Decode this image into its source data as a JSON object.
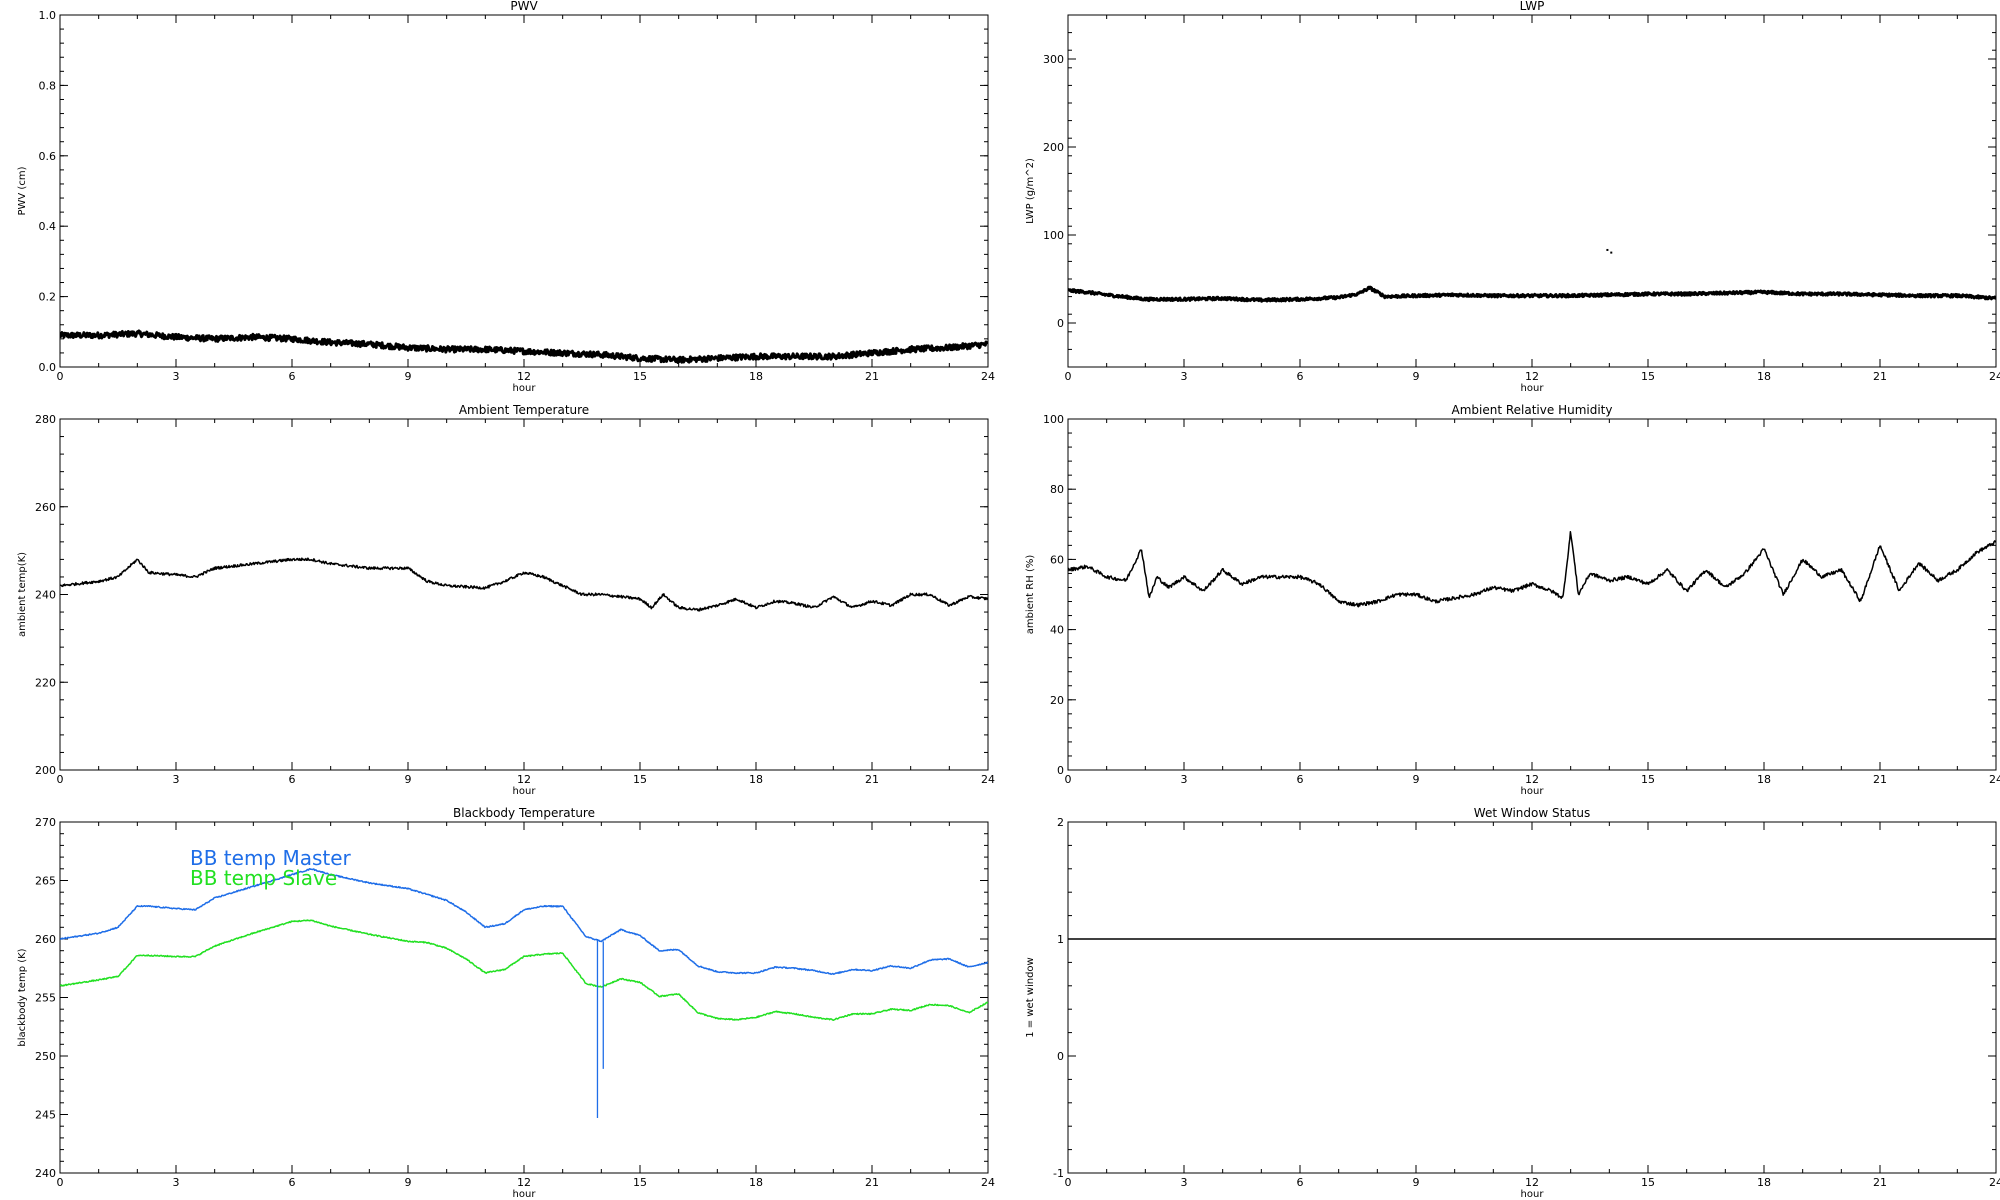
{
  "figure": {
    "panels": [
      "pwv",
      "lwp",
      "ambient_temperature",
      "ambient_relative_humidity",
      "blackbody_temperature",
      "wet_window_status"
    ]
  },
  "chart_data": [
    {
      "id": "pwv",
      "type": "line",
      "title": "PWV",
      "xlabel": "hour",
      "ylabel": "PWV (cm)",
      "xlim": [
        0,
        24
      ],
      "ylim": [
        0,
        1
      ],
      "xticks": [
        0,
        3,
        6,
        9,
        12,
        15,
        18,
        21,
        24
      ],
      "yticks": [
        "0.0",
        "0.2",
        "0.4",
        "0.6",
        "0.8",
        "1.0"
      ],
      "grid": false,
      "noise": 0.008,
      "series": [
        {
          "color": "#000000",
          "width": 3,
          "x": [
            0,
            1,
            2,
            3,
            4,
            5,
            6,
            7,
            8,
            9,
            10,
            11,
            12,
            13,
            14,
            15,
            16,
            17,
            18,
            19,
            20,
            21,
            22,
            23,
            24
          ],
          "y": [
            0.09,
            0.09,
            0.095,
            0.085,
            0.08,
            0.085,
            0.08,
            0.07,
            0.065,
            0.055,
            0.05,
            0.05,
            0.045,
            0.04,
            0.035,
            0.025,
            0.02,
            0.025,
            0.03,
            0.03,
            0.03,
            0.04,
            0.05,
            0.055,
            0.065
          ]
        }
      ]
    },
    {
      "id": "lwp",
      "type": "line",
      "title": "LWP",
      "xlabel": "hour",
      "ylabel": "LWP (g/m^2)",
      "xlim": [
        0,
        24
      ],
      "ylim": [
        -50,
        350
      ],
      "xticks": [
        0,
        3,
        6,
        9,
        12,
        15,
        18,
        21,
        24
      ],
      "yticks": [
        "0",
        "100",
        "200",
        "300"
      ],
      "grid": false,
      "noise": 1.5,
      "series": [
        {
          "color": "#000000",
          "width": 3,
          "x": [
            0,
            0.5,
            1,
            2,
            3,
            4,
            5,
            6,
            7,
            7.5,
            7.8,
            8.2,
            9,
            10,
            11,
            12,
            13,
            14,
            15,
            16,
            17,
            18,
            19,
            20,
            21,
            22,
            23,
            24
          ],
          "y": [
            37,
            35,
            32,
            27,
            27,
            28,
            26,
            27,
            29,
            33,
            40,
            30,
            31,
            32,
            31,
            31,
            31,
            32,
            33,
            33,
            34,
            35,
            33,
            33,
            32,
            31,
            31,
            28
          ]
        },
        {
          "color": "#000000",
          "width": 2,
          "points_only": true,
          "x": [
            13.95,
            14.05
          ],
          "y": [
            83,
            80
          ]
        }
      ]
    },
    {
      "id": "ambient_temperature",
      "type": "line",
      "title": "Ambient Temperature",
      "xlabel": "hour",
      "ylabel": "ambient temp(K)",
      "xlim": [
        0,
        24
      ],
      "ylim": [
        200,
        280
      ],
      "xticks": [
        0,
        3,
        6,
        9,
        12,
        15,
        18,
        21,
        24
      ],
      "yticks": [
        "200",
        "220",
        "240",
        "260",
        "280"
      ],
      "grid": false,
      "noise": 0.3,
      "series": [
        {
          "color": "#000000",
          "width": 1.5,
          "x": [
            0,
            1,
            1.5,
            2,
            2.3,
            3,
            3.5,
            4,
            5,
            6,
            6.5,
            7,
            8,
            9,
            9.5,
            10,
            11,
            11.5,
            12,
            12.5,
            13,
            13.5,
            14,
            14.5,
            15,
            15.3,
            15.6,
            16,
            16.5,
            17,
            17.5,
            18,
            18.5,
            19,
            19.5,
            20,
            20.5,
            21,
            21.5,
            22,
            22.5,
            23,
            23.5,
            24
          ],
          "y": [
            242,
            243,
            244,
            248,
            245,
            244.5,
            244,
            246,
            247,
            248,
            248,
            247,
            246,
            246,
            243,
            242,
            241.5,
            243,
            245,
            244,
            242,
            240,
            240,
            239.5,
            239,
            237,
            240,
            237,
            236.5,
            237.5,
            239,
            237,
            238.5,
            238,
            237,
            239.5,
            237,
            238.5,
            237.5,
            240,
            240,
            237.5,
            239.5,
            239
          ]
        }
      ]
    },
    {
      "id": "ambient_relative_humidity",
      "type": "line",
      "title": "Ambient Relative Humidity",
      "xlabel": "hour",
      "ylabel": "ambient RH (%)",
      "xlim": [
        0,
        24
      ],
      "ylim": [
        0,
        100
      ],
      "xticks": [
        0,
        3,
        6,
        9,
        12,
        15,
        18,
        21,
        24
      ],
      "yticks": [
        "0",
        "20",
        "40",
        "60",
        "80",
        "100"
      ],
      "grid": false,
      "noise": 0.5,
      "series": [
        {
          "color": "#000000",
          "width": 1.5,
          "x": [
            0,
            0.5,
            1,
            1.5,
            1.9,
            2.1,
            2.3,
            2.6,
            3,
            3.5,
            4,
            4.5,
            5,
            5.5,
            6,
            6.5,
            6.8,
            7,
            7.5,
            8,
            8.5,
            9,
            9.5,
            10,
            10.5,
            11,
            11.5,
            12,
            12.5,
            12.8,
            13,
            13.2,
            13.5,
            14,
            14.5,
            15,
            15.5,
            16,
            16.5,
            17,
            17.5,
            18,
            18.5,
            19,
            19.5,
            20,
            20.5,
            21,
            21.5,
            22,
            22.5,
            23,
            23.5,
            24
          ],
          "y": [
            57,
            58,
            55,
            54,
            63,
            49,
            55,
            52,
            55,
            51,
            57,
            53,
            55,
            55,
            55,
            53,
            50,
            48,
            47,
            48,
            50,
            50,
            48,
            49,
            50,
            52,
            51,
            53,
            51,
            49,
            68,
            50,
            56,
            54,
            55,
            53,
            57,
            51,
            57,
            52,
            56,
            63,
            50,
            60,
            55,
            57,
            48,
            64,
            51,
            59,
            54,
            57,
            62,
            65
          ]
        }
      ]
    },
    {
      "id": "blackbody_temperature",
      "type": "line",
      "title": "Blackbody Temperature",
      "xlabel": "hour",
      "ylabel": "blackbody temp (K)",
      "xlim": [
        0,
        24
      ],
      "ylim": [
        240,
        270
      ],
      "xticks": [
        0,
        3,
        6,
        9,
        12,
        15,
        18,
        21,
        24
      ],
      "yticks": [
        "240",
        "245",
        "250",
        "255",
        "260",
        "265",
        "270"
      ],
      "grid": false,
      "noise": 0.05,
      "legend_position": "top-left",
      "series": [
        {
          "name": "BB temp Master",
          "color": "#1f6ee8",
          "width": 1.5,
          "x": [
            0,
            1,
            1.5,
            2,
            2.3,
            3,
            3.5,
            4,
            5,
            6,
            6.5,
            7,
            8,
            9,
            9.5,
            10,
            10.5,
            11,
            11.5,
            12,
            12.5,
            13,
            13.3,
            13.6,
            14,
            14.5,
            15,
            15.5,
            16,
            16.5,
            17,
            17.5,
            18,
            18.5,
            19,
            19.5,
            20,
            20.5,
            21,
            21.5,
            22,
            22.5,
            23,
            23.5,
            24
          ],
          "y": [
            260,
            260.5,
            261,
            262.8,
            262.8,
            262.6,
            262.5,
            263.5,
            264.5,
            265.5,
            266,
            265.5,
            264.8,
            264.3,
            263.8,
            263.3,
            262.3,
            261,
            261.3,
            262.5,
            262.8,
            262.8,
            261.5,
            260.2,
            259.8,
            260.8,
            260.3,
            259,
            259.1,
            257.7,
            257.2,
            257.1,
            257.1,
            257.6,
            257.5,
            257.3,
            257,
            257.4,
            257.3,
            257.7,
            257.5,
            258.2,
            258.3,
            257.6,
            258
          ]
        },
        {
          "name": "BB temp Slave",
          "color": "#22e022",
          "width": 1.5,
          "x": [
            0,
            1,
            1.5,
            2,
            2.3,
            3,
            3.5,
            4,
            5,
            6,
            6.5,
            7,
            8,
            9,
            9.5,
            10,
            10.5,
            11,
            11.5,
            12,
            12.5,
            13,
            13.3,
            13.6,
            14,
            14.5,
            15,
            15.5,
            16,
            16.5,
            17,
            17.5,
            18,
            18.5,
            19,
            19.5,
            20,
            20.5,
            21,
            21.5,
            22,
            22.5,
            23,
            23.5,
            24
          ],
          "y": [
            256,
            256.5,
            256.8,
            258.6,
            258.6,
            258.5,
            258.5,
            259.4,
            260.5,
            261.5,
            261.6,
            261.1,
            260.4,
            259.8,
            259.7,
            259.2,
            258.3,
            257.1,
            257.4,
            258.5,
            258.7,
            258.8,
            257.5,
            256.2,
            255.9,
            256.6,
            256.3,
            255.1,
            255.3,
            253.7,
            253.2,
            253.1,
            253.3,
            253.8,
            253.6,
            253.3,
            253.1,
            253.6,
            253.6,
            254,
            253.9,
            254.4,
            254.3,
            253.7,
            254.6
          ]
        },
        {
          "color": "#1f6ee8",
          "width": 1.3,
          "segments": true,
          "x": [
            13.9,
            13.9,
            14.05,
            14.05
          ],
          "y": [
            260,
            244.7,
            259.8,
            248.9
          ]
        }
      ]
    },
    {
      "id": "wet_window_status",
      "type": "line",
      "title": "Wet Window Status",
      "xlabel": "hour",
      "ylabel": "1 = wet window",
      "xlim": [
        0,
        24
      ],
      "ylim": [
        -1,
        2
      ],
      "xticks": [
        0,
        3,
        6,
        9,
        12,
        15,
        18,
        21,
        24
      ],
      "yticks": [
        "-1",
        "0",
        "1",
        "2"
      ],
      "grid": false,
      "noise": 0,
      "series": [
        {
          "color": "#000000",
          "width": 1.5,
          "x": [
            0,
            24
          ],
          "y": [
            1,
            1
          ]
        }
      ]
    }
  ]
}
